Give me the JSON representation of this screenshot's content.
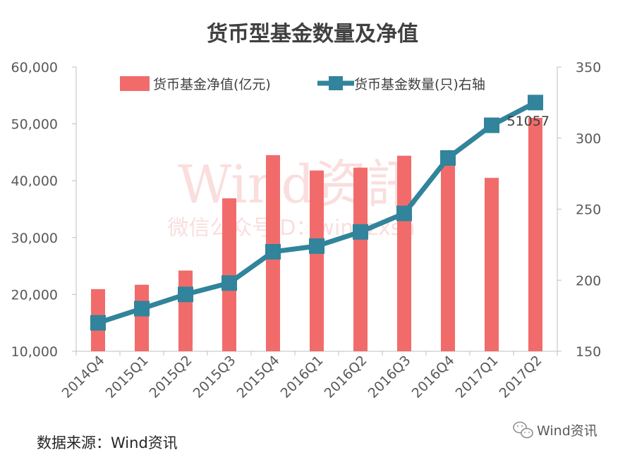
{
  "chart_data": {
    "type": "bar",
    "title": "货币型基金数量及净值",
    "categories": [
      "2014Q4",
      "2015Q1",
      "2015Q2",
      "2015Q3",
      "2015Q4",
      "2016Q1",
      "2016Q2",
      "2016Q3",
      "2016Q4",
      "2017Q1",
      "2017Q2"
    ],
    "series": [
      {
        "name": "货币基金净值(亿元)",
        "kind": "bar",
        "axis": "left",
        "color": "#f26b6b",
        "values": [
          20930,
          21700,
          24200,
          36900,
          44500,
          41800,
          42300,
          44400,
          43100,
          40500,
          51057
        ]
      },
      {
        "name": "货币基金数量(只)右轴",
        "kind": "line",
        "axis": "right",
        "color": "#31849b",
        "values": [
          170,
          180,
          190,
          198,
          220,
          224,
          234,
          247,
          286,
          309,
          325
        ]
      }
    ],
    "y_left": {
      "min": 10000,
      "max": 60000,
      "ticks": [
        "10,000",
        "20,000",
        "30,000",
        "40,000",
        "50,000",
        "60,000"
      ],
      "tick_values": [
        10000,
        20000,
        30000,
        40000,
        50000,
        60000
      ]
    },
    "y_right": {
      "min": 150,
      "max": 350,
      "ticks": [
        "150",
        "200",
        "250",
        "300",
        "350"
      ],
      "tick_values": [
        150,
        200,
        250,
        300,
        350
      ]
    },
    "annotations": [
      {
        "text": "51057",
        "category": "2017Q2"
      }
    ],
    "grid": false,
    "legend": "top"
  },
  "watermark": {
    "line1": "Wind资訊",
    "line2": "微信公众号ID：windzxsn"
  },
  "footer": {
    "source": "数据来源：Wind资讯",
    "brand": "Wind资讯"
  },
  "colors": {
    "bar": "#f26b6b",
    "line": "#31849b",
    "axis": "#bfbfbf"
  }
}
